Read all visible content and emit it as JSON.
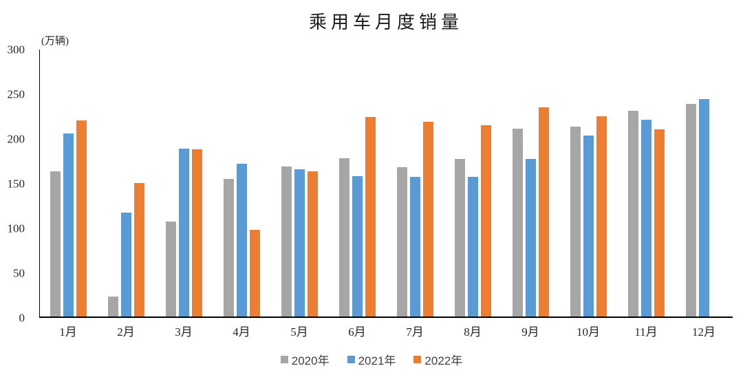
{
  "chart_data": {
    "type": "bar",
    "title": "乘用车月度销量",
    "ylabel": "(万辆)",
    "xlabel": "",
    "categories": [
      "1月",
      "2月",
      "3月",
      "4月",
      "5月",
      "6月",
      "7月",
      "8月",
      "9月",
      "10月",
      "11月",
      "12月"
    ],
    "series": [
      {
        "name": "2020年",
        "color": "#A6A6A6",
        "values": [
          162,
          22,
          106,
          154,
          168,
          177,
          167,
          176,
          210,
          212,
          230,
          238
        ]
      },
      {
        "name": "2021年",
        "color": "#5B9BD5",
        "values": [
          205,
          116,
          188,
          171,
          165,
          157,
          156,
          156,
          176,
          202,
          220,
          243
        ]
      },
      {
        "name": "2022年",
        "color": "#ED7D31",
        "values": [
          219,
          149,
          187,
          97,
          162,
          223,
          218,
          214,
          234,
          224,
          209,
          null
        ]
      }
    ],
    "ylim": [
      0,
      300
    ],
    "y_ticks": [
      0,
      50,
      100,
      150,
      200,
      250,
      300
    ],
    "grid": false,
    "legend_position": "bottom",
    "axis_color": "#000000",
    "text_color": "#262626"
  }
}
